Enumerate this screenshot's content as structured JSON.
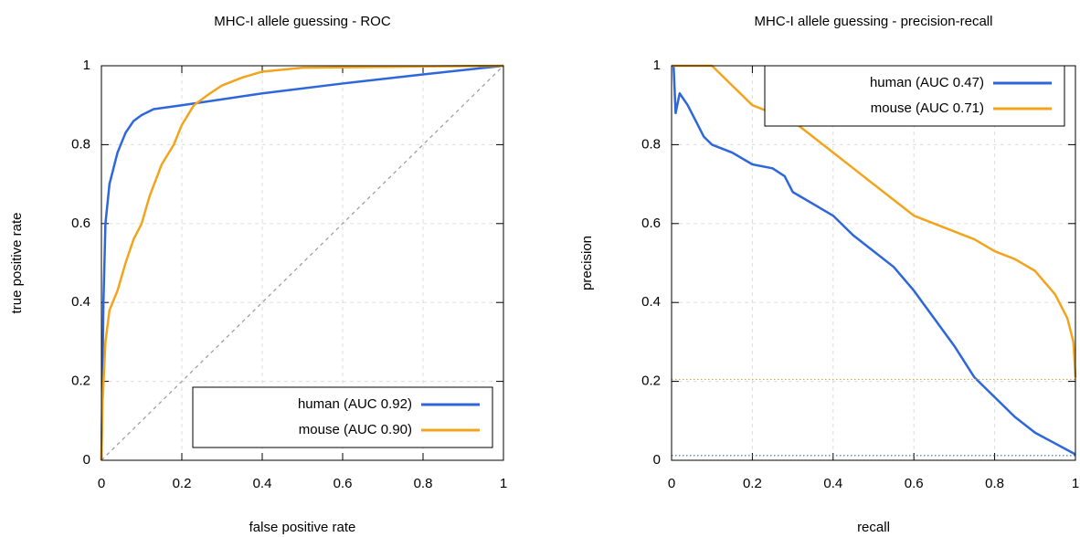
{
  "chart_data": [
    {
      "type": "line",
      "title": "MHC-I allele guessing - ROC",
      "xlabel": "false positive rate",
      "ylabel": "true positive rate",
      "xlim": [
        0,
        1
      ],
      "ylim": [
        0,
        1
      ],
      "xticks": [
        0,
        0.2,
        0.4,
        0.6,
        0.8,
        1
      ],
      "yticks": [
        0,
        0.2,
        0.4,
        0.6,
        0.8,
        1
      ],
      "grid": true,
      "diagonal": true,
      "legend": "lower right",
      "series": [
        {
          "name": "human (AUC 0.92)",
          "color": "#2e66dc",
          "x": [
            0,
            0.002,
            0.005,
            0.01,
            0.02,
            0.04,
            0.06,
            0.08,
            0.1,
            0.13,
            0.2,
            0.4,
            0.6,
            0.8,
            1
          ],
          "values": [
            0,
            0.15,
            0.4,
            0.6,
            0.7,
            0.78,
            0.83,
            0.86,
            0.875,
            0.89,
            0.9,
            0.93,
            0.955,
            0.978,
            1
          ]
        },
        {
          "name": "mouse (AUC 0.90)",
          "color": "#f2a41c",
          "x": [
            0,
            0.003,
            0.01,
            0.02,
            0.04,
            0.06,
            0.08,
            0.1,
            0.12,
            0.15,
            0.18,
            0.2,
            0.23,
            0.27,
            0.3,
            0.35,
            0.4,
            0.5,
            1
          ],
          "values": [
            0,
            0.15,
            0.3,
            0.38,
            0.43,
            0.5,
            0.56,
            0.6,
            0.67,
            0.75,
            0.8,
            0.85,
            0.9,
            0.93,
            0.95,
            0.97,
            0.985,
            0.995,
            1
          ]
        }
      ]
    },
    {
      "type": "line",
      "title": "MHC-I allele guessing - precision-recall",
      "xlabel": "recall",
      "ylabel": "precision",
      "xlim": [
        0,
        1
      ],
      "ylim": [
        0,
        1
      ],
      "xticks": [
        0,
        0.2,
        0.4,
        0.6,
        0.8,
        1
      ],
      "yticks": [
        0,
        0.2,
        0.4,
        0.6,
        0.8,
        1
      ],
      "grid": true,
      "diagonal": false,
      "legend": "upper right",
      "series": [
        {
          "name": "human (AUC 0.47)",
          "color": "#2e66dc",
          "baseline": 0.012,
          "x": [
            0.005,
            0.01,
            0.02,
            0.04,
            0.06,
            0.08,
            0.1,
            0.15,
            0.2,
            0.25,
            0.28,
            0.3,
            0.35,
            0.4,
            0.45,
            0.5,
            0.55,
            0.6,
            0.65,
            0.7,
            0.75,
            0.8,
            0.85,
            0.9,
            1
          ],
          "values": [
            1,
            0.88,
            0.93,
            0.9,
            0.86,
            0.82,
            0.8,
            0.78,
            0.75,
            0.74,
            0.72,
            0.68,
            0.65,
            0.62,
            0.57,
            0.53,
            0.49,
            0.43,
            0.36,
            0.29,
            0.21,
            0.16,
            0.11,
            0.07,
            0.015
          ]
        },
        {
          "name": "mouse (AUC 0.71)",
          "color": "#f2a41c",
          "baseline": 0.205,
          "x": [
            0,
            0.1,
            0.15,
            0.2,
            0.25,
            0.3,
            0.35,
            0.4,
            0.45,
            0.5,
            0.55,
            0.6,
            0.65,
            0.7,
            0.75,
            0.8,
            0.85,
            0.9,
            0.95,
            0.98,
            0.995,
            1
          ],
          "values": [
            1,
            1,
            0.95,
            0.9,
            0.88,
            0.86,
            0.82,
            0.78,
            0.74,
            0.7,
            0.66,
            0.62,
            0.6,
            0.58,
            0.56,
            0.53,
            0.51,
            0.48,
            0.42,
            0.36,
            0.3,
            0.21
          ]
        }
      ]
    }
  ]
}
